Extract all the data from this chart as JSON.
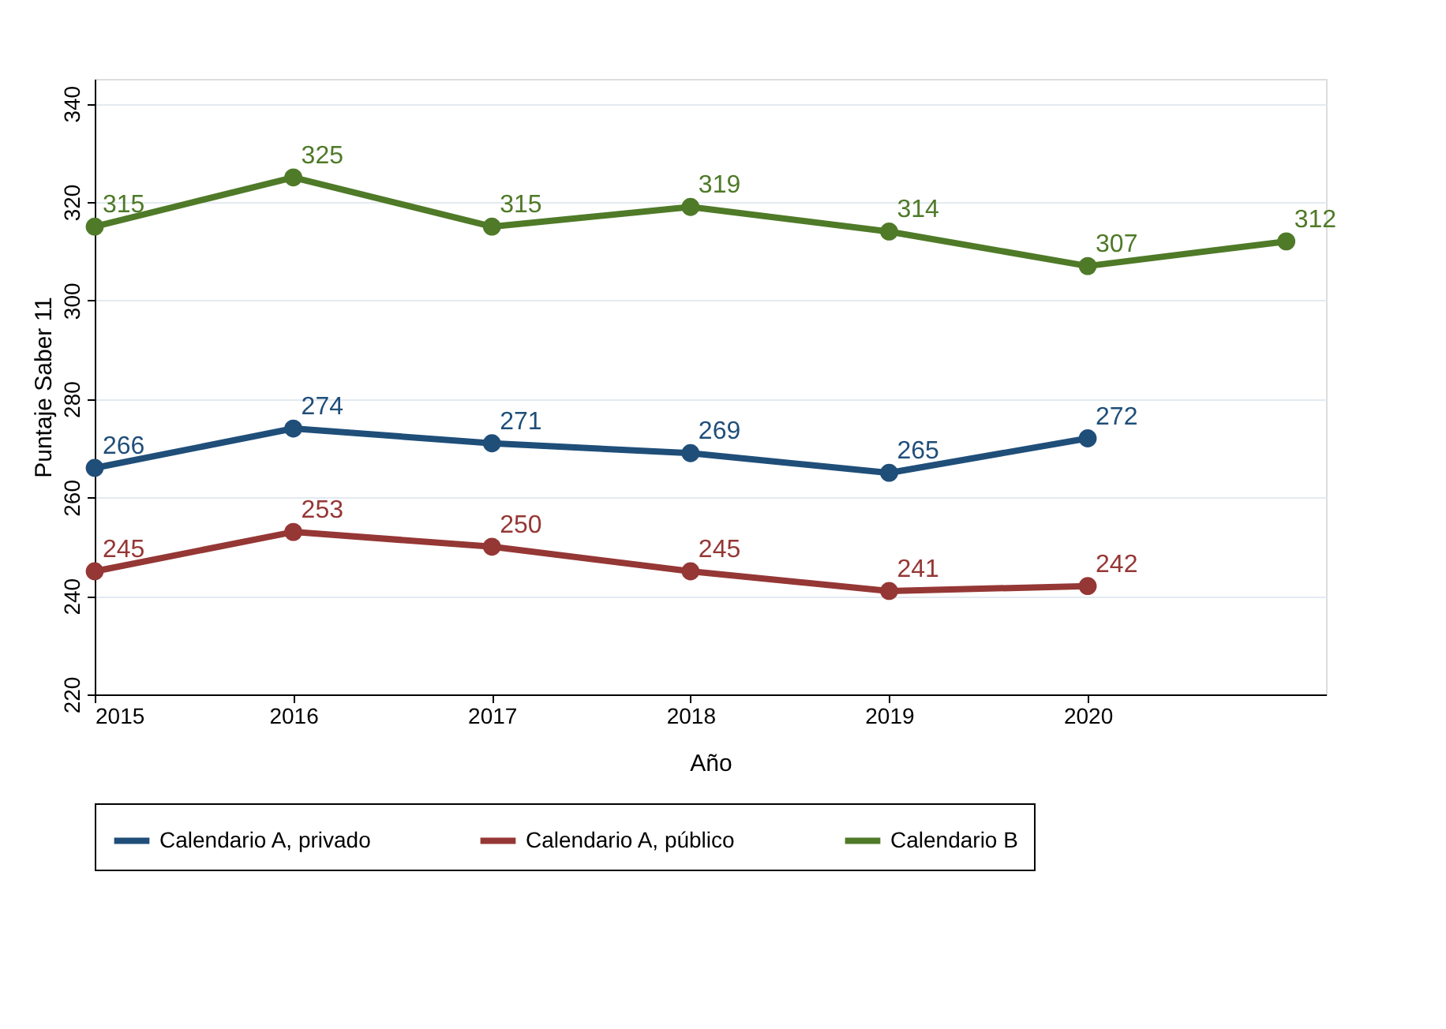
{
  "chart_data": {
    "type": "line",
    "xlabel": "Año",
    "ylabel": "Puntaje Saber 11",
    "x": [
      2015,
      2016,
      2017,
      2018,
      2019,
      2020,
      2021
    ],
    "series": [
      {
        "name": "Calendario A, privado",
        "color": "#1f4e79",
        "values": [
          266,
          274,
          271,
          269,
          265,
          272,
          null
        ]
      },
      {
        "name": "Calendario A, público",
        "color": "#953735",
        "values": [
          245,
          253,
          250,
          245,
          241,
          242,
          null
        ]
      },
      {
        "name": "Calendario B",
        "color": "#4f7a28",
        "values": [
          315,
          325,
          315,
          319,
          314,
          307,
          312
        ]
      }
    ],
    "xlim": [
      2015,
      2021.2
    ],
    "xticks": [
      2015,
      2016,
      2017,
      2018,
      2019,
      2020
    ],
    "ylim": [
      220,
      345
    ],
    "yticks": [
      220,
      240,
      260,
      280,
      300,
      320,
      340
    ],
    "grid": "y",
    "legend": "bottom",
    "marker": "circle",
    "line_style": "solid",
    "data_labels": true
  }
}
